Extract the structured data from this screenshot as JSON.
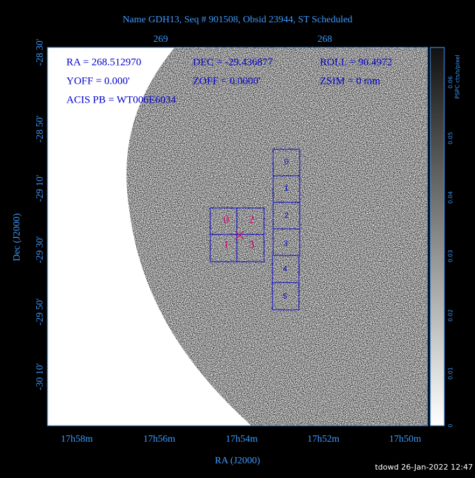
{
  "title": "Name GDH13, Seq # 901508, Obsid 23944, ST Scheduled",
  "top_axis_labels": [
    "269",
    "268"
  ],
  "y_axis_title": "Dec (J2000)",
  "y_tick_labels": [
    "-28 30'",
    "-28 50'",
    "-29 10'",
    "-29 30'",
    "-29 50'",
    "-30 10'"
  ],
  "x_axis_title": "RA (J2000)",
  "x_tick_labels": [
    "17h58m",
    "17h56m",
    "17h54m",
    "17h52m",
    "17h50m"
  ],
  "info_lines": [
    [
      "RA = 268.512970",
      "DEC = -29.436877",
      "ROLL = 90.4972"
    ],
    [
      "YOFF =   0.000'",
      "ZOFF =  0.0000'",
      "ZSIM = 0 mm"
    ],
    [
      "ACIS PB = WT006E6034"
    ]
  ],
  "acis_s_chips": [
    "0",
    "1",
    "2",
    "3",
    "4",
    "5"
  ],
  "acis_i_chips": [
    "0",
    "2",
    "1",
    "3"
  ],
  "colorbar_title": "PSPC cts/s/pixel",
  "colorbar_ticks": [
    "0",
    "0.01",
    "0.02",
    "0.03",
    "0.04",
    "0.05",
    "0.06"
  ],
  "footer": "tdowd 26-Jan-2022 12:47"
}
